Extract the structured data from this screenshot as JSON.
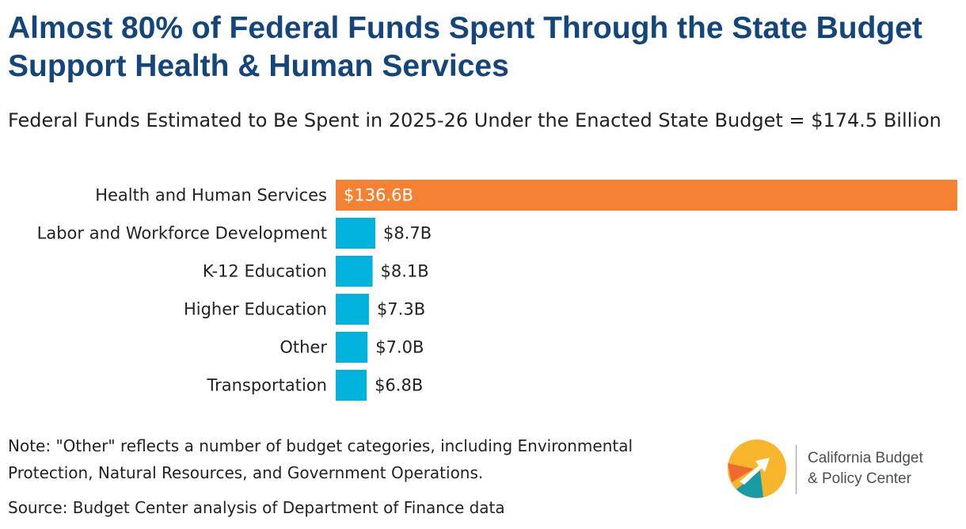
{
  "title": "Almost 80% of Federal Funds Spent Through the State Budget Support Health & Human Services",
  "subtitle": "Federal Funds Estimated to Be Spent in 2025-26 Under the Enacted State Budget = $174.5 Billion",
  "chart_data": {
    "type": "bar",
    "orientation": "horizontal",
    "title": "Federal Funds Estimated to Be Spent in 2025-26 Under the Enacted State Budget = $174.5 Billion",
    "xlabel": "",
    "ylabel": "",
    "unit": "billions of dollars",
    "categories": [
      "Health and Human Services",
      "Labor and Workforce Development",
      "K-12 Education",
      "Higher Education",
      "Other",
      "Transportation"
    ],
    "values": [
      136.6,
      8.7,
      8.1,
      7.3,
      7.0,
      6.8
    ],
    "labels": [
      "$136.6B",
      "$8.7B",
      "$8.1B",
      "$7.3B",
      "$7.0B",
      "$6.8B"
    ],
    "xlim": [
      0,
      136.6
    ],
    "grid": false,
    "legend": "none",
    "colors": {
      "highlight": "#f58232",
      "default": "#00b3dd",
      "inside_label": "#ffffff",
      "outside_label": "#222222"
    }
  },
  "note": "Note: \"Other\" reflects a number of budget categories, including Environmental Protection, Natural Resources, and Government Operations.",
  "source": "Source: Budget Center analysis of Department of Finance data",
  "logo": {
    "line1": "California Budget",
    "line2": "& Policy Center",
    "colors": {
      "yellow": "#f7b52c",
      "orange": "#ef6b2d",
      "teal": "#1a9aa3",
      "text": "#4a4f55"
    }
  }
}
